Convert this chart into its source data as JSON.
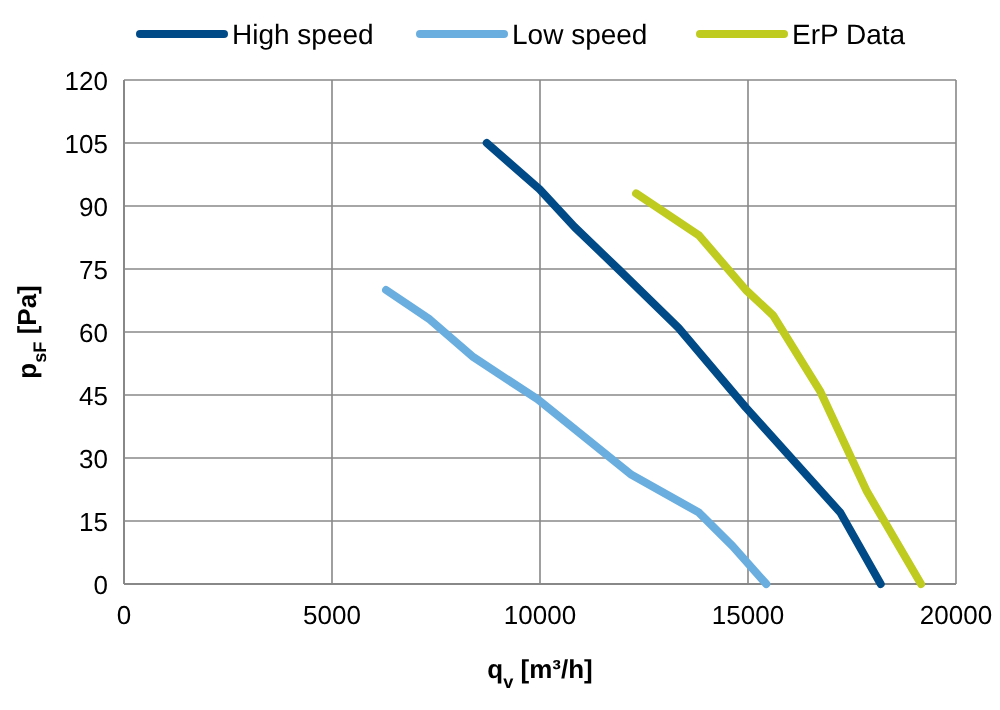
{
  "chart_data": {
    "type": "line",
    "xlabel": "q$_{v}$ [m³/h]",
    "ylabel": "p$_{sF}$ [Pa]",
    "xlim": [
      0,
      20000
    ],
    "ylim": [
      0,
      120
    ],
    "xticks": [
      0,
      5000,
      10000,
      15000,
      20000
    ],
    "yticks": [
      0,
      15,
      30,
      45,
      60,
      75,
      90,
      105,
      120
    ],
    "grid": true,
    "legend": "top",
    "marker": "none",
    "series": [
      {
        "name": "High speed",
        "color": "#004b87",
        "x": [
          8720,
          9990,
          10830,
          11880,
          13330,
          14950,
          17220,
          18190
        ],
        "values": [
          105,
          94,
          85,
          75,
          61,
          42,
          17,
          0
        ]
      },
      {
        "name": "Low speed",
        "color": "#6aaee0",
        "x": [
          6300,
          7350,
          8400,
          9940,
          12200,
          13820,
          14630,
          15440
        ],
        "values": [
          70,
          63,
          54,
          44,
          26,
          17,
          9,
          0
        ]
      },
      {
        "name": "ErP Data",
        "color": "#bfcb1e",
        "x": [
          12310,
          13820,
          14950,
          15600,
          16730,
          17860,
          19160
        ],
        "values": [
          93,
          83,
          70,
          64,
          46,
          22,
          0
        ]
      }
    ]
  }
}
